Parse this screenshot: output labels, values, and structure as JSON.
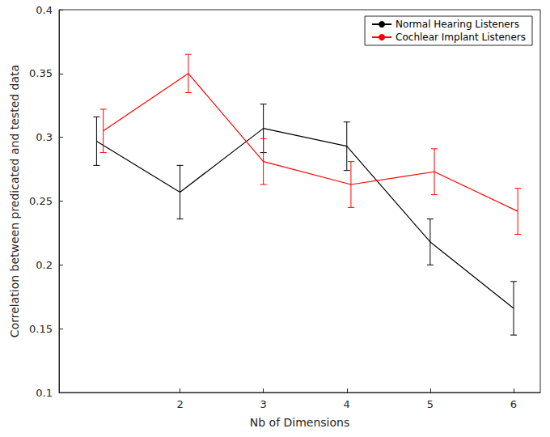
{
  "chart_data": {
    "type": "line",
    "xlabel": "Nb of Dimensions",
    "ylabel": "Correlation between predicated and tested data",
    "xlim": [
      0.55,
      6.32
    ],
    "xticks": [
      2,
      3,
      4,
      5,
      6
    ],
    "ylim": [
      0.1,
      0.4
    ],
    "yticks": [
      0.1,
      0.15,
      0.2,
      0.25,
      0.3,
      0.35,
      0.4
    ],
    "grid": false,
    "legend": "upper right",
    "series": [
      {
        "name": "Normal Hearing Listeners",
        "color": "#000000",
        "x": [
          1,
          2,
          3,
          4,
          5,
          6
        ],
        "values": [
          0.297,
          0.257,
          0.307,
          0.293,
          0.218,
          0.166
        ],
        "errors": [
          0.019,
          0.021,
          0.019,
          0.019,
          0.018,
          0.021
        ]
      },
      {
        "name": "Cochlear Implant Listeners",
        "color": "#ff0000",
        "x": [
          1.08,
          2.1,
          3.0,
          4.05,
          5.05,
          6.05
        ],
        "values": [
          0.305,
          0.35,
          0.281,
          0.263,
          0.273,
          0.242
        ],
        "errors": [
          0.017,
          0.015,
          0.018,
          0.018,
          0.018,
          0.018
        ]
      }
    ]
  }
}
